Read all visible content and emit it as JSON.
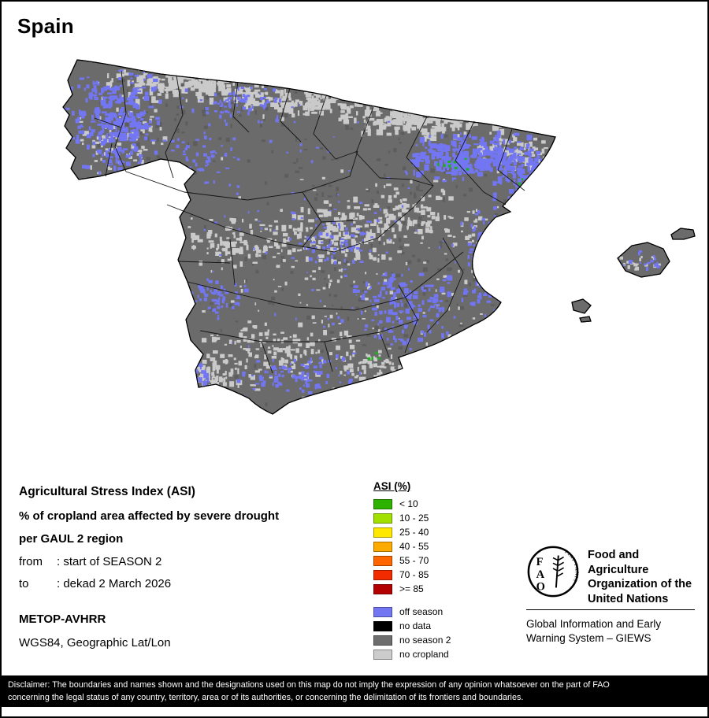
{
  "title": "Spain",
  "legend_left": {
    "heading": "Agricultural Stress Index (ASI)",
    "line1": "% of cropland area affected by severe drought",
    "line2": "per GAUL 2 region",
    "from_label": "from",
    "from_value": ": start of SEASON 2",
    "to_label": "to",
    "to_value": ": dekad 2 March 2026",
    "sensor": "METOP-AVHRR",
    "projection": "WGS84, Geographic Lat/Lon"
  },
  "asi_legend": {
    "heading": "ASI (%)",
    "classes": [
      {
        "label": "< 10",
        "color": "#2eb200"
      },
      {
        "label": "10 - 25",
        "color": "#a2e000"
      },
      {
        "label": "25 - 40",
        "color": "#ffe800"
      },
      {
        "label": "40 - 55",
        "color": "#ffaa00"
      },
      {
        "label": "55 - 70",
        "color": "#ff6600"
      },
      {
        "label": "70 - 85",
        "color": "#f22b00"
      },
      {
        "label": ">= 85",
        "color": "#b30000"
      }
    ],
    "extra_classes": [
      {
        "label": "off season",
        "color": "#7376f3"
      },
      {
        "label": "no data",
        "color": "#000000"
      },
      {
        "label": "no season 2",
        "color": "#6e6e6e"
      },
      {
        "label": "no cropland",
        "color": "#cccccc"
      }
    ]
  },
  "fao": {
    "logo_letters": "FAO",
    "logo_motto": "FIAT PANIS",
    "org_name": "Food and Agriculture\nOrganization of the\nUnited Nations",
    "giews": "Global Information and Early\nWarning System – GIEWS"
  },
  "disclaimer": "Disclaimer: The boundaries and names shown and the designations used on this map do not imply the expression of any opinion whatsoever on the part of FAO\nconcerning the legal status of any country, territory, area or of its authorities, or concerning the delimitation of its frontiers and boundaries.",
  "map": {
    "base_color": "#6b6b6b",
    "base_shade_color": "#5d5d5d",
    "no_cropland_color": "#cacaca",
    "off_season_color": "#7376f3",
    "good_color": "#1fb11f",
    "outline_color": "#000000",
    "boundary_color": "#141414"
  }
}
